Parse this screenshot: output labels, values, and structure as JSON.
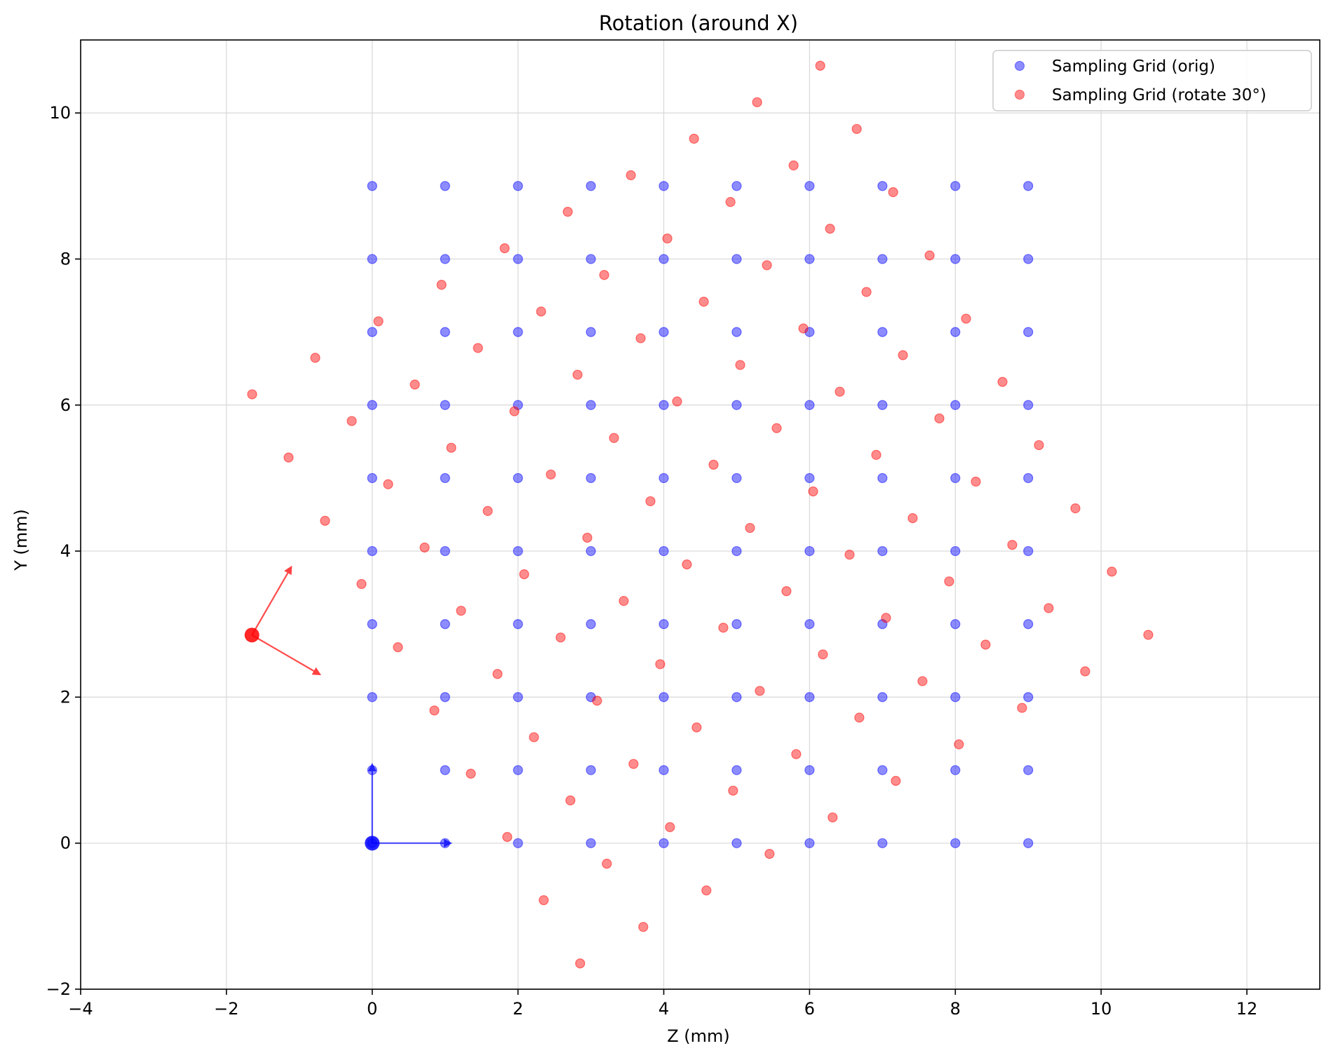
{
  "chart_data": {
    "type": "scatter",
    "title": "Rotation (around X)",
    "xlabel": "Z (mm)",
    "ylabel": "Y (mm)",
    "xlim": [
      -4,
      13
    ],
    "ylim": [
      -2,
      11
    ],
    "xticks": [
      -4,
      -2,
      0,
      2,
      4,
      6,
      8,
      10,
      12
    ],
    "yticks": [
      -2,
      0,
      2,
      4,
      6,
      8,
      10
    ],
    "grid": true,
    "legend_position": "top-right",
    "series": [
      {
        "name": "Sampling Grid (orig)",
        "color": "#0000ff",
        "grid": {
          "z_values": [
            0,
            1,
            2,
            3,
            4,
            5,
            6,
            7,
            8,
            9
          ],
          "y_values": [
            0,
            1,
            2,
            3,
            4,
            5,
            6,
            7,
            8,
            9
          ]
        }
      },
      {
        "name": "Sampling Grid (rotate 30°)",
        "color": "#ff0000",
        "rotation_deg": 30,
        "pivot": [
          4.5,
          4.5
        ]
      }
    ],
    "origin_frames": [
      {
        "color": "#0000ff",
        "origin": [
          0,
          0
        ],
        "axis_1_tip": [
          1.1,
          0
        ],
        "axis_2_tip": [
          0,
          1.1
        ]
      },
      {
        "color": "#ff0000",
        "origin": [
          -1.65,
          2.85
        ],
        "axis_1_tip": [
          -0.7,
          2.3
        ],
        "axis_2_tip": [
          -1.1,
          3.8
        ]
      }
    ]
  }
}
